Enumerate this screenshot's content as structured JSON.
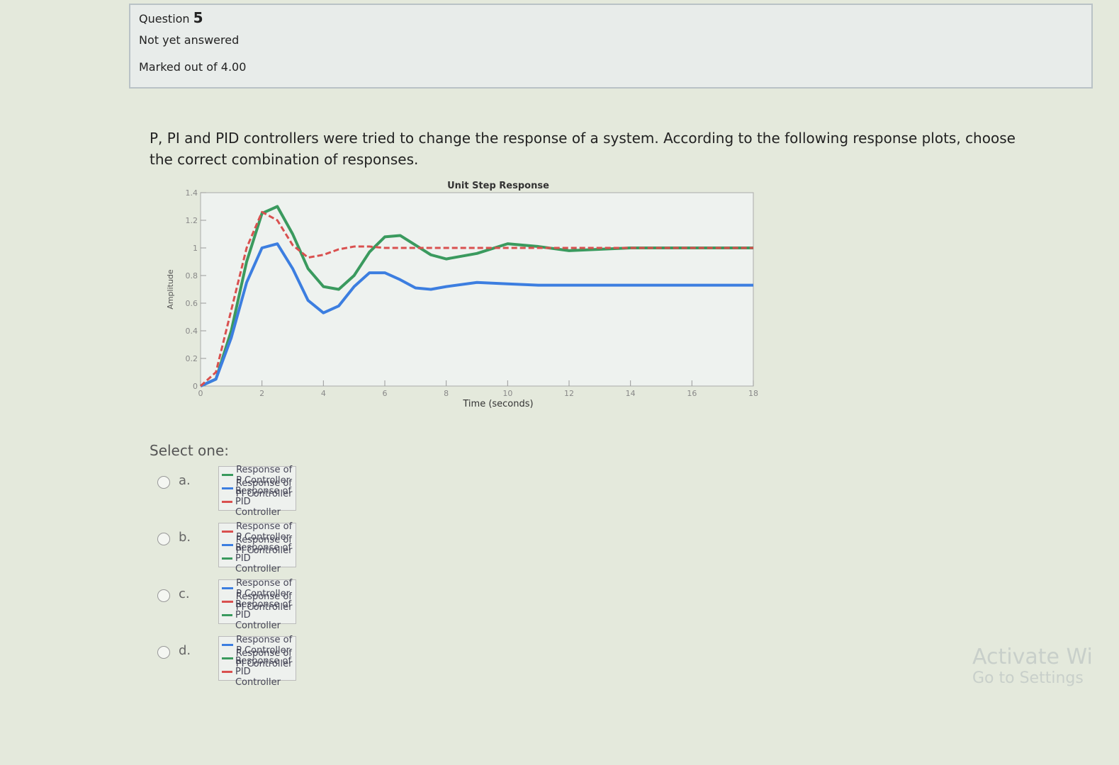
{
  "question": {
    "label": "Question",
    "number": "5",
    "status": "Not yet answered",
    "marks": "Marked out of 4.00"
  },
  "prompt": "P, PI and PID controllers were tried to change the response of a system. According to the following response plots, choose the correct combination of responses.",
  "chart_data": {
    "type": "line",
    "title": "Unit Step Response",
    "x_label": "Time (seconds)",
    "y_label": "Amplitude",
    "x": [
      0,
      0.5,
      1,
      1.5,
      2,
      2.5,
      3,
      3.5,
      4,
      4.5,
      5,
      5.5,
      6,
      6.5,
      7,
      7.5,
      8,
      9,
      10,
      11,
      12,
      14,
      16,
      18
    ],
    "series": [
      {
        "color": "#3a9a5e",
        "style": "solid",
        "values": [
          0,
          0.05,
          0.4,
          0.9,
          1.25,
          1.3,
          1.1,
          0.85,
          0.72,
          0.7,
          0.8,
          0.97,
          1.08,
          1.09,
          1.02,
          0.95,
          0.92,
          0.96,
          1.03,
          1.01,
          0.98,
          1.0,
          1.0,
          1.0
        ]
      },
      {
        "color": "#3c7ee0",
        "style": "solid",
        "values": [
          0,
          0.05,
          0.35,
          0.75,
          1.0,
          1.03,
          0.85,
          0.62,
          0.53,
          0.58,
          0.72,
          0.82,
          0.82,
          0.77,
          0.71,
          0.7,
          0.72,
          0.75,
          0.74,
          0.73,
          0.73,
          0.73,
          0.73,
          0.73
        ]
      },
      {
        "color": "#d9504f",
        "style": "dashed",
        "values": [
          0,
          0.1,
          0.55,
          1.0,
          1.26,
          1.2,
          1.02,
          0.93,
          0.95,
          0.99,
          1.01,
          1.01,
          1.0,
          1.0,
          1.0,
          1.0,
          1.0,
          1.0,
          1.0,
          1.0,
          1.0,
          1.0,
          1.0,
          1.0
        ]
      }
    ],
    "xlim": [
      0,
      18
    ],
    "xticks": [
      0,
      2,
      4,
      6,
      8,
      10,
      12,
      14,
      16,
      18
    ],
    "ylim": [
      0,
      1.4
    ],
    "yticks": [
      0,
      0.2,
      0.4,
      0.6,
      0.8,
      1,
      1.2,
      1.4
    ]
  },
  "select_label": "Select one:",
  "options": [
    {
      "letter": "a.",
      "legend": [
        {
          "text": "Response of P Controller",
          "color": "#3a9a5e"
        },
        {
          "text": "Response of PI Controller",
          "color": "#3c7ee0"
        },
        {
          "text": "Response of PID Controller",
          "color": "#d9504f"
        }
      ]
    },
    {
      "letter": "b.",
      "legend": [
        {
          "text": "Response of P Controller",
          "color": "#d9504f"
        },
        {
          "text": "Response of PI Controller",
          "color": "#3c7ee0"
        },
        {
          "text": "Response of PID Controller",
          "color": "#3a9a5e"
        }
      ]
    },
    {
      "letter": "c.",
      "legend": [
        {
          "text": "Response of P Controller",
          "color": "#3c7ee0"
        },
        {
          "text": "Response of PI Controller",
          "color": "#d9504f"
        },
        {
          "text": "Response of PID Controller",
          "color": "#3a9a5e"
        }
      ]
    },
    {
      "letter": "d.",
      "legend": [
        {
          "text": "Response of P Controller",
          "color": "#3c7ee0"
        },
        {
          "text": "Response of PI Controller",
          "color": "#3a9a5e"
        },
        {
          "text": "Response of PID Controller",
          "color": "#d9504f"
        }
      ]
    }
  ],
  "watermark": {
    "line1": "Activate Wi",
    "line2": "Go to Settings"
  }
}
